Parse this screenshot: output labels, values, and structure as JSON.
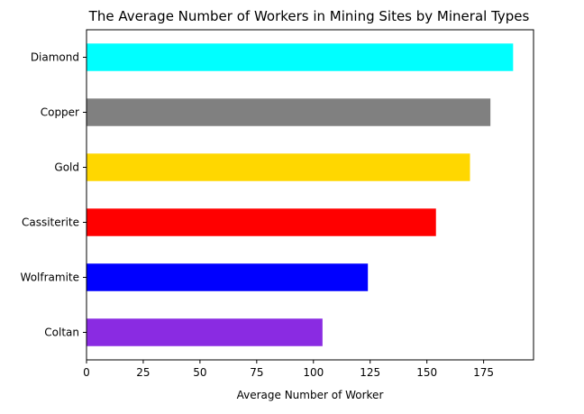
{
  "chart_data": {
    "type": "bar",
    "orientation": "horizontal",
    "title": "The Average Number of Workers in Mining Sites by Mineral Types",
    "xlabel": "Average Number of Worker",
    "ylabel": "",
    "categories": [
      "Diamond",
      "Copper",
      "Gold",
      "Cassiterite",
      "Wolframite",
      "Coltan"
    ],
    "values": [
      188,
      178,
      169,
      154,
      124,
      104
    ],
    "colors": [
      "#00ffff",
      "#808080",
      "#ffd700",
      "#ff0000",
      "#0000ff",
      "#8a2be2"
    ],
    "xlim": [
      0,
      197
    ],
    "xticks": [
      0,
      25,
      50,
      75,
      100,
      125,
      150,
      175
    ],
    "grid": false,
    "legend": "none"
  }
}
